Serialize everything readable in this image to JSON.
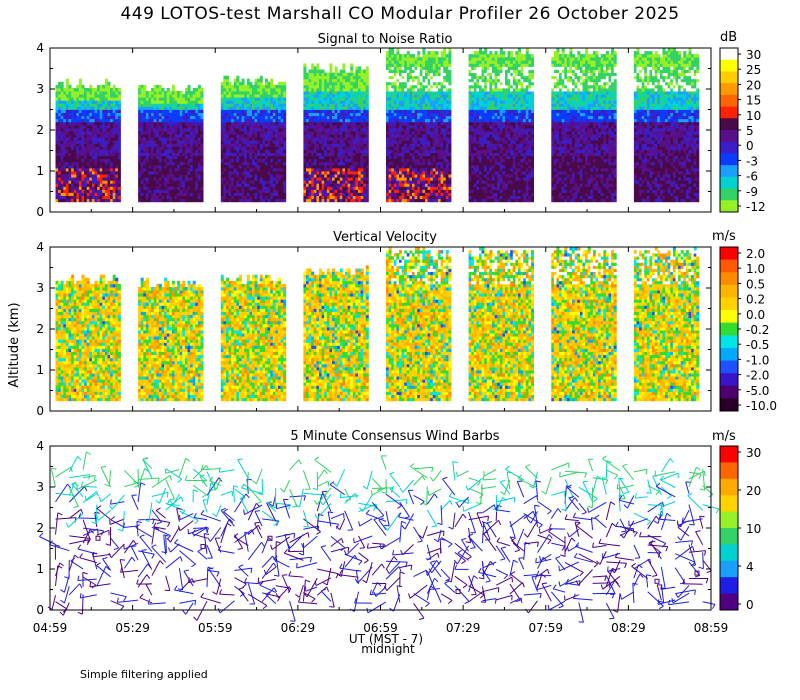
{
  "figure": {
    "title": "449 LOTOS-test Marshall CO Modular Profiler 26 October 2025",
    "footnote": "Simple filtering applied",
    "y_axis_label": "Altitude (km)",
    "x_axis_label": "UT  (MST - 7)",
    "x_axis_sublabel": "midnight"
  },
  "chart_data": [
    {
      "type": "heatmap",
      "title": "Signal to Noise Ratio",
      "ylim": [
        0,
        4
      ],
      "yticks": [
        "0",
        "1",
        "2",
        "3",
        "4"
      ],
      "xticks": [
        "04:59",
        "05:29",
        "05:59",
        "06:29",
        "06:59",
        "07:29",
        "07:59",
        "08:29",
        "08:59"
      ],
      "colorbar": {
        "unit": "dB",
        "labels": [
          "30",
          "25",
          "20",
          "15",
          "10",
          "5",
          "0",
          "-3",
          "-6",
          "-9",
          "-12"
        ],
        "colors": [
          "#ffffff",
          "#ffff00",
          "#ffcc00",
          "#ff9900",
          "#ff6600",
          "#ff2200",
          "#4a0a4a",
          "#5a0f8a",
          "#3c1ec8",
          "#0a3cff",
          "#19a0ff",
          "#00d2d2",
          "#32d264",
          "#96f028"
        ]
      },
      "data_columns": [
        {
          "start": "05:01",
          "end": "05:24",
          "top_km": 3.2
        },
        {
          "start": "05:31",
          "end": "05:54",
          "top_km": 3.1
        },
        {
          "start": "06:01",
          "end": "06:24",
          "top_km": 3.3
        },
        {
          "start": "06:31",
          "end": "06:54",
          "top_km": 3.6
        },
        {
          "start": "07:01",
          "end": "07:24",
          "top_km": 4.0
        },
        {
          "start": "07:31",
          "end": "07:54",
          "top_km": 4.0
        },
        {
          "start": "08:01",
          "end": "08:24",
          "top_km": 4.0
        },
        {
          "start": "08:31",
          "end": "08:54",
          "top_km": 4.0
        }
      ]
    },
    {
      "type": "heatmap",
      "title": "Vertical Velocity",
      "ylim": [
        0,
        4
      ],
      "yticks": [
        "0",
        "1",
        "2",
        "3",
        "4"
      ],
      "xticks": [
        "04:59",
        "05:29",
        "05:59",
        "06:29",
        "06:59",
        "07:29",
        "07:59",
        "08:29",
        "08:59"
      ],
      "colorbar": {
        "unit": "m/s",
        "labels": [
          "2.0",
          "1.0",
          "0.5",
          "0.2",
          "0.0",
          "-0.2",
          "-0.5",
          "-1.0",
          "-2.0",
          "-5.0",
          "-10.0"
        ],
        "colors": [
          "#ff0000",
          "#ff5a00",
          "#ff8c00",
          "#ffb400",
          "#ffd200",
          "#ffff00",
          "#32dc32",
          "#00e6e6",
          "#00aaff",
          "#1e50ff",
          "#3c14c8",
          "#50006e",
          "#280028"
        ]
      },
      "data_columns": [
        {
          "start": "05:01",
          "end": "05:24",
          "top_km": 3.3
        },
        {
          "start": "05:31",
          "end": "05:54",
          "top_km": 3.2
        },
        {
          "start": "06:01",
          "end": "06:24",
          "top_km": 3.3
        },
        {
          "start": "06:31",
          "end": "06:54",
          "top_km": 3.5
        },
        {
          "start": "07:01",
          "end": "07:24",
          "top_km": 4.0
        },
        {
          "start": "07:31",
          "end": "07:54",
          "top_km": 4.0
        },
        {
          "start": "08:01",
          "end": "08:24",
          "top_km": 4.0
        },
        {
          "start": "08:31",
          "end": "08:54",
          "top_km": 4.0
        }
      ]
    },
    {
      "type": "scatter",
      "title": "5 Minute Consensus Wind Barbs",
      "ylim": [
        0,
        4
      ],
      "yticks": [
        "0",
        "1",
        "2",
        "3",
        "4"
      ],
      "xticks": [
        "04:59",
        "05:29",
        "05:59",
        "06:29",
        "06:59",
        "07:29",
        "07:59",
        "08:29",
        "08:59"
      ],
      "colorbar": {
        "unit": "m/s",
        "labels": [
          "30",
          "20",
          "10",
          "4",
          "0"
        ],
        "colors": [
          "#ff0000",
          "#ff6600",
          "#ffaa00",
          "#ffd200",
          "#96f028",
          "#32d264",
          "#00d2d2",
          "#19a0ff",
          "#1e1ee6",
          "#500082"
        ]
      },
      "wind_summary": [
        {
          "altitude_range_km": [
            0,
            2.5
          ],
          "typical_speed_ms": [
            0,
            4
          ]
        },
        {
          "altitude_range_km": [
            2.2,
            3.0
          ],
          "typical_speed_ms": [
            4,
            10
          ]
        },
        {
          "altitude_range_km": [
            3.0,
            3.6
          ],
          "typical_speed_ms": [
            10,
            15
          ]
        }
      ]
    }
  ]
}
